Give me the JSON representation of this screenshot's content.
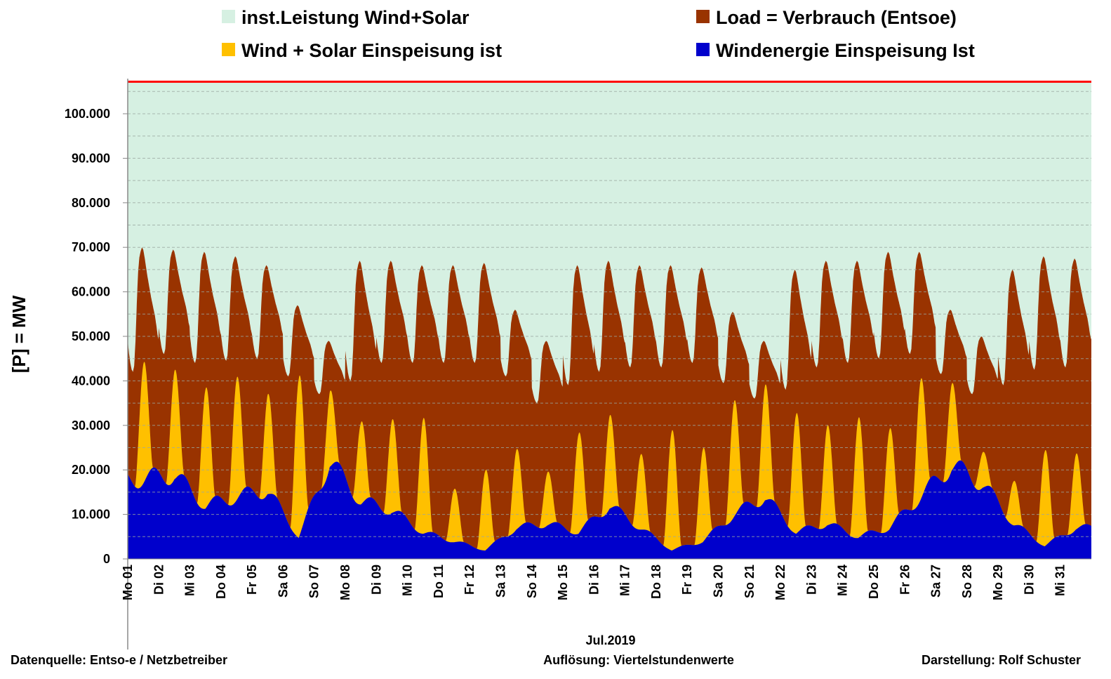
{
  "chart_data": {
    "type": "area",
    "title": "",
    "xlabel": "Jul.2019",
    "ylabel": "[P] = MW",
    "ylim": [
      0,
      108000
    ],
    "yticks": [
      "0",
      "10.000",
      "20.000",
      "30.000",
      "40.000",
      "50.000",
      "60.000",
      "70.000",
      "80.000",
      "90.000",
      "100.000"
    ],
    "ytick_values": [
      0,
      10000,
      20000,
      30000,
      40000,
      50000,
      60000,
      70000,
      80000,
      90000,
      100000
    ],
    "grid": "dashed horizontal every 5.000 MW",
    "resolution_note": "daily parameters (MW) used to reconstruct quarter-hour profile",
    "days": [
      "Mo 01",
      "Di 02",
      "Mi 03",
      "Do 04",
      "Fr 05",
      "Sa 06",
      "So 07",
      "Mo 08",
      "Di 09",
      "Mi 10",
      "Do 11",
      "Fr 12",
      "Sa 13",
      "So 14",
      "Mo 15",
      "Di 16",
      "Mi 17",
      "Do 18",
      "Fr 19",
      "Sa 20",
      "So 21",
      "Mo 22",
      "Di 23",
      "Mi 24",
      "Do 25",
      "Fr 26",
      "Sa 27",
      "So 28",
      "Mo 29",
      "Di 30",
      "Mi 31"
    ],
    "installed_wind_solar": 107200,
    "load_daily_max": [
      70000,
      69500,
      69000,
      68000,
      66000,
      57000,
      49000,
      67000,
      67000,
      66000,
      66000,
      66500,
      56000,
      49000,
      66000,
      67000,
      66000,
      66000,
      65500,
      55500,
      49000,
      65000,
      67000,
      67000,
      69000,
      69000,
      56000,
      50000,
      65000,
      68000,
      67500
    ],
    "load_daily_min": [
      42000,
      46000,
      44000,
      44500,
      45000,
      41000,
      37000,
      40000,
      44000,
      44000,
      44000,
      44000,
      41000,
      35000,
      39000,
      42000,
      43000,
      43000,
      44000,
      39500,
      36000,
      38000,
      43000,
      44000,
      45000,
      46000,
      41500,
      37000,
      39000,
      42500,
      43000
    ],
    "wind_solar_daily_peak": [
      45000,
      43500,
      39000,
      41500,
      38000,
      41000,
      39000,
      31500,
      32000,
      32000,
      16000,
      20000,
      25000,
      20000,
      28500,
      33000,
      24000,
      29000,
      25000,
      36000,
      40000,
      33000,
      30500,
      32000,
      29500,
      41000,
      40500,
      25000,
      18000,
      24500,
      24000
    ],
    "wind_daily": [
      18000,
      19000,
      12000,
      14000,
      15500,
      5000,
      22000,
      13000,
      11000,
      6000,
      4000,
      2000,
      7000,
      8000,
      6000,
      12000,
      7000,
      2000,
      4000,
      10000,
      14000,
      6000,
      8000,
      5000,
      7000,
      14000,
      21000,
      17000,
      8000,
      3000,
      7000
    ],
    "legend": [
      {
        "label": "inst.Leistung Wind+Solar",
        "color": "#d6f0e2"
      },
      {
        "label": "Load =  Verbrauch (Entsoe)",
        "color": "#993300"
      },
      {
        "label": "Wind + Solar Einspeisung ist",
        "color": "#ffc000"
      },
      {
        "label": "Windenergie Einspeisung Ist",
        "color": "#0000cc"
      }
    ],
    "capacity_line_color": "#ff0000"
  },
  "footer": {
    "source": "Datenquelle:  Entso-e  / Netzbetreiber",
    "resolution": "Auflösung: Viertelstundenwerte",
    "author": "Darstellung: Rolf Schuster"
  }
}
